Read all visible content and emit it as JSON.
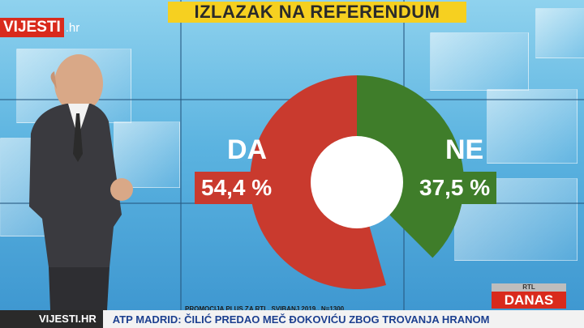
{
  "title": "IZLAZAK NA REFERENDUM",
  "logo": {
    "main": "VIJESTI",
    "tld": ".hr"
  },
  "results": [
    {
      "label": "DA",
      "value": "54,4 %",
      "percent": 54.4,
      "color": "#c93a2e"
    },
    {
      "label": "NE",
      "value": "37,5 %",
      "percent": 37.5,
      "color": "#3f7d2a"
    }
  ],
  "source_note": "PROMOCIJA PLUS ZA RTL, SVIBANJ 2019., N=1300",
  "channel_bug": {
    "top": "RTL",
    "main": "DANAS"
  },
  "ticker": {
    "brand": "VIJESTI.HR",
    "text": "ATP MADRID: ČILIĆ PREDAO MEČ ĐOKOVIĆU ZBOG TROVANJA HRANOM"
  },
  "colors": {
    "title_bg": "#f6d020",
    "da_box": "#c93a2e",
    "ne_box": "#3f7d2a",
    "brand_red": "#d92a1c"
  }
}
